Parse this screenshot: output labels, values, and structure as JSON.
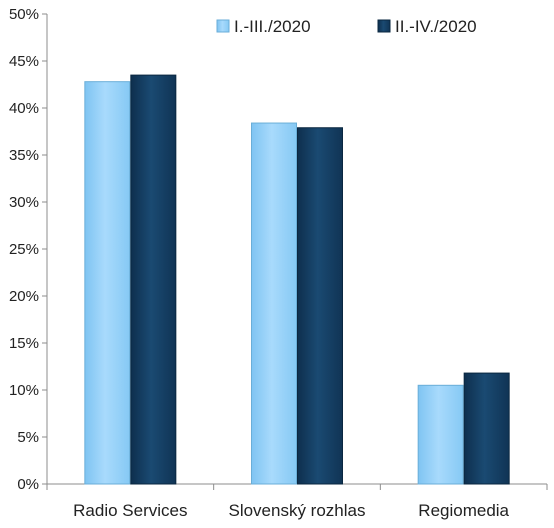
{
  "chart_data": {
    "type": "bar",
    "categories": [
      "Radio Services",
      "Slovenský rozhlas",
      "Regiomedia"
    ],
    "series": [
      {
        "name": "I.-III./2020",
        "values": [
          42.8,
          38.4,
          10.5
        ],
        "color": "#93cff7"
      },
      {
        "name": "II.-IV./2020",
        "values": [
          43.5,
          37.9,
          11.8
        ],
        "color": "#143a5c"
      }
    ],
    "y_ticks": [
      "0%",
      "5%",
      "10%",
      "15%",
      "20%",
      "25%",
      "30%",
      "35%",
      "40%",
      "45%",
      "50%"
    ],
    "ylim": [
      0,
      50
    ],
    "grid": false,
    "legend_position": "top-right"
  }
}
